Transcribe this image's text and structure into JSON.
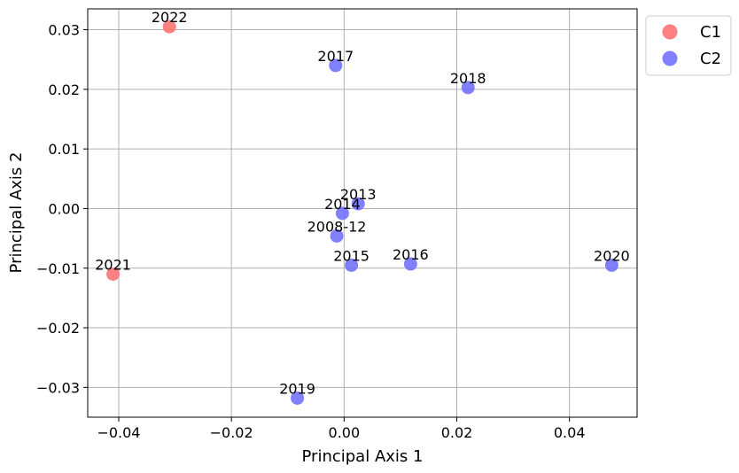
{
  "chart_data": {
    "type": "scatter",
    "title": "",
    "xlabel": "Principal Axis 1",
    "ylabel": "Principal Axis 2",
    "xlim": [
      -0.0455,
      0.052
    ],
    "ylim": [
      -0.035,
      0.0335
    ],
    "xticks": [
      -0.04,
      -0.02,
      0.0,
      0.02,
      0.04
    ],
    "xtick_labels": [
      "−0.04",
      "−0.02",
      "0.00",
      "0.02",
      "0.04"
    ],
    "yticks": [
      -0.03,
      -0.02,
      -0.01,
      0.0,
      0.01,
      0.02,
      0.03
    ],
    "ytick_labels": [
      "−0.03",
      "−0.02",
      "−0.01",
      "0.00",
      "0.01",
      "0.02",
      "0.03"
    ],
    "grid": true,
    "legend_position": "outside-top-right",
    "series": [
      {
        "name": "C1",
        "color": "#ff6b6b",
        "edge_color": "#ff8080",
        "points": [
          {
            "label": "2022",
            "x": -0.031,
            "y": 0.0305
          },
          {
            "label": "2021",
            "x": -0.041,
            "y": -0.011
          }
        ]
      },
      {
        "name": "C2",
        "color": "#6b6bff",
        "edge_color": "#8080ff",
        "points": [
          {
            "label": "2017",
            "x": -0.0015,
            "y": 0.024
          },
          {
            "label": "2018",
            "x": 0.022,
            "y": 0.0203
          },
          {
            "label": "2013",
            "x": 0.0025,
            "y": 0.0008
          },
          {
            "label": "2014",
            "x": -0.0003,
            "y": -0.0008
          },
          {
            "label": "2008-12",
            "x": -0.0013,
            "y": -0.0046
          },
          {
            "label": "2015",
            "x": 0.0013,
            "y": -0.0095
          },
          {
            "label": "2016",
            "x": 0.0118,
            "y": -0.0093
          },
          {
            "label": "2020",
            "x": 0.0475,
            "y": -0.0095
          },
          {
            "label": "2019",
            "x": -0.0083,
            "y": -0.0318
          }
        ]
      }
    ]
  }
}
